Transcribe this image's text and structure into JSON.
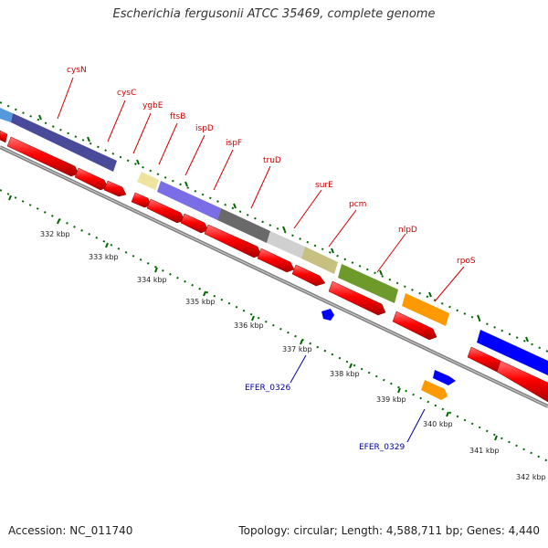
{
  "title": "Escherichia fergusonii ATCC 35469, complete genome",
  "accession_text": "Accession: NC_011740",
  "topology_text": "Topology: circular; Length: 4,588,711 bp; Genes: 4,440",
  "colors": {
    "forward_cds": "#ff0000",
    "backbone": "#808080",
    "tick_green": "#006600",
    "label_red": "#cc0000",
    "label_blue": "#000099"
  },
  "top_labels": [
    "cysN",
    "cysC",
    "ygbE",
    "ftsB",
    "ispD",
    "ispF",
    "truD",
    "surE",
    "pcm",
    "nlpD",
    "rpoS"
  ],
  "bottom_labels": [
    "EFER_0326",
    "EFER_0329"
  ],
  "kbp_labels": [
    "332 kbp",
    "333 kbp",
    "334 kbp",
    "335 kbp",
    "336 kbp",
    "337 kbp",
    "338 kbp",
    "339 kbp",
    "340 kbp",
    "341 kbp",
    "342 kbp"
  ],
  "feature_colors": {
    "cysN": "#4a4a9a",
    "ygbE": "#eee4a0",
    "ftsB": "#7a6ee6",
    "ispD": "#6a6a6a",
    "ispF": "#d0d0d0",
    "truD": "#c8c080",
    "surE": "#6e9a2c",
    "pcm": "#ff9900",
    "rpoS": "#0000ff",
    "EFER_0326": "#0000ff",
    "EFER_0329_a": "#0000ff",
    "EFER_0329_b": "#ff9900"
  }
}
